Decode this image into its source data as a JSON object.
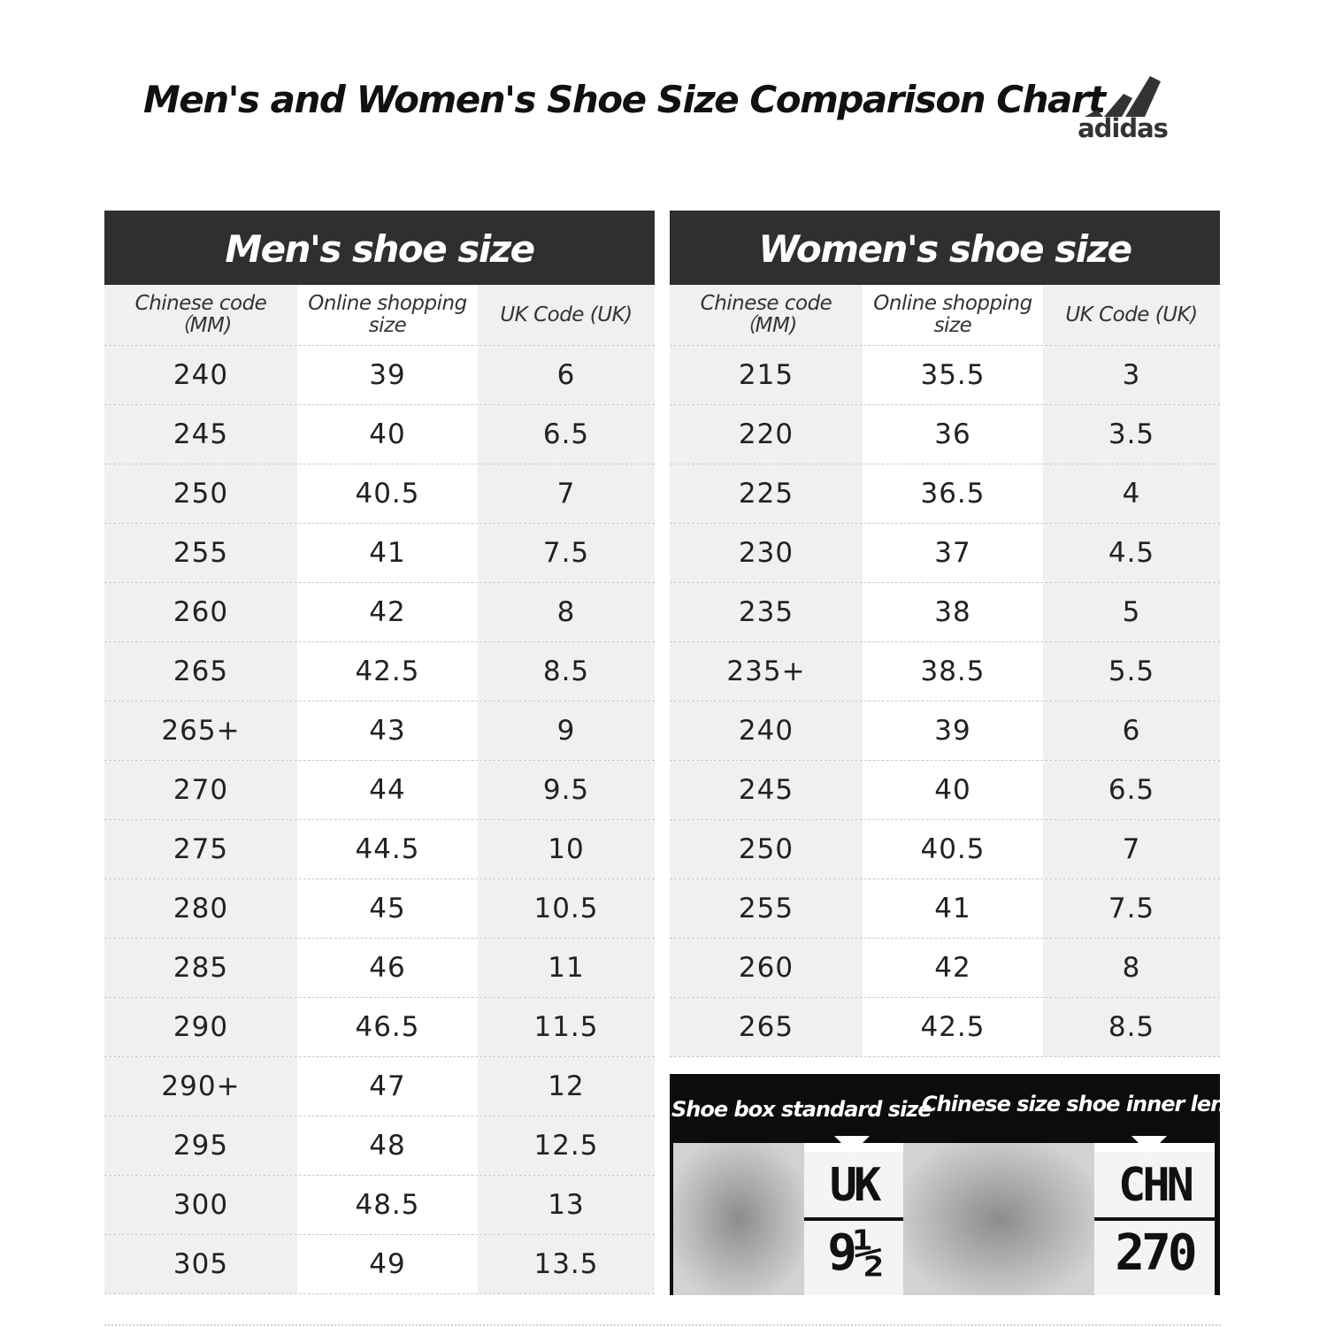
{
  "title": "Men's and Women's Shoe Size Comparison Chart",
  "brand": "adidas",
  "men": {
    "heading": "Men's shoe size",
    "columns": [
      "Chinese code（MM)",
      "Online shopping size",
      "UK Code (UK)"
    ],
    "rows": [
      [
        "240",
        "39",
        "6"
      ],
      [
        "245",
        "40",
        "6.5"
      ],
      [
        "250",
        "40.5",
        "7"
      ],
      [
        "255",
        "41",
        "7.5"
      ],
      [
        "260",
        "42",
        "8"
      ],
      [
        "265",
        "42.5",
        "8.5"
      ],
      [
        "265+",
        "43",
        "9"
      ],
      [
        "270",
        "44",
        "9.5"
      ],
      [
        "275",
        "44.5",
        "10"
      ],
      [
        "280",
        "45",
        "10.5"
      ],
      [
        "285",
        "46",
        "11"
      ],
      [
        "290",
        "46.5",
        "11.5"
      ],
      [
        "290+",
        "47",
        "12"
      ],
      [
        "295",
        "48",
        "12.5"
      ],
      [
        "300",
        "48.5",
        "13"
      ],
      [
        "305",
        "49",
        "13.5"
      ]
    ]
  },
  "women": {
    "heading": "Women's shoe size",
    "columns": [
      "Chinese code（MM)",
      "Online shopping size",
      "UK Code (UK)"
    ],
    "rows": [
      [
        "215",
        "35.5",
        "3"
      ],
      [
        "220",
        "36",
        "3.5"
      ],
      [
        "225",
        "36.5",
        "4"
      ],
      [
        "230",
        "37",
        "4.5"
      ],
      [
        "235",
        "38",
        "5"
      ],
      [
        "235+",
        "38.5",
        "5.5"
      ],
      [
        "240",
        "39",
        "6"
      ],
      [
        "245",
        "40",
        "6.5"
      ],
      [
        "250",
        "40.5",
        "7"
      ],
      [
        "255",
        "41",
        "7.5"
      ],
      [
        "260",
        "42",
        "8"
      ],
      [
        "265",
        "42.5",
        "8.5"
      ]
    ]
  },
  "photo": {
    "caption_left": "Shoe box standard size",
    "caption_right": "Chinese size shoe inner length",
    "tag_left_label": "UK",
    "tag_left_value": "9½",
    "tag_right_label": "CHN",
    "tag_right_value": "270"
  }
}
